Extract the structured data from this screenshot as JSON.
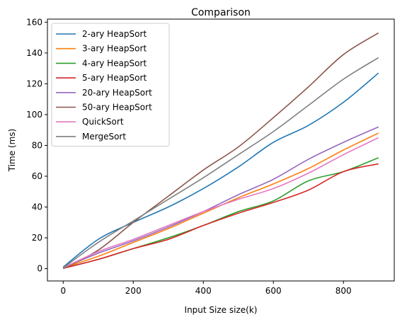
{
  "chart_data": {
    "type": "line",
    "title": "Comparison",
    "xlabel": "Input Size size(k)",
    "ylabel": "Time (ms)",
    "xlim": [
      -45,
      945
    ],
    "ylim": [
      -8,
      162
    ],
    "xticks": [
      0,
      200,
      400,
      600,
      800
    ],
    "yticks": [
      0,
      20,
      40,
      60,
      80,
      100,
      120,
      140,
      160
    ],
    "grid": false,
    "legend_position": "upper-left",
    "x": [
      0,
      100,
      200,
      300,
      400,
      500,
      600,
      700,
      800,
      900
    ],
    "series": [
      {
        "name": "2-ary HeapSort",
        "color": "#1f77b4",
        "values": [
          1,
          19,
          30,
          40,
          52,
          66,
          82,
          93,
          108,
          127
        ]
      },
      {
        "name": "3-ary HeapSort",
        "color": "#ff7f0e",
        "values": [
          0.5,
          8,
          17,
          26,
          36,
          46,
          55,
          65,
          77,
          88
        ]
      },
      {
        "name": "4-ary HeapSort",
        "color": "#2ca02c",
        "values": [
          0.3,
          6,
          13,
          20,
          28,
          37,
          44,
          57,
          63,
          72
        ]
      },
      {
        "name": "5-ary HeapSort",
        "color": "#d62728",
        "values": [
          0.2,
          6,
          13,
          19,
          28,
          36,
          43,
          51,
          63,
          68
        ]
      },
      {
        "name": "20-ary HeapSort",
        "color": "#9467bd",
        "values": [
          0.5,
          10,
          18,
          27,
          37,
          48,
          58,
          71,
          82,
          92
        ]
      },
      {
        "name": "50-ary HeapSort",
        "color": "#8c564b",
        "values": [
          0,
          12,
          30,
          47,
          64,
          79,
          98,
          118,
          139,
          153
        ]
      },
      {
        "name": "QuickSort",
        "color": "#e377c2",
        "values": [
          0.5,
          11,
          19,
          28,
          37,
          45,
          52,
          62,
          74,
          85
        ]
      },
      {
        "name": "MergeSort",
        "color": "#7f7f7f",
        "values": [
          0.5,
          17,
          31,
          45,
          59,
          74,
          89,
          106,
          123,
          137
        ]
      }
    ]
  }
}
